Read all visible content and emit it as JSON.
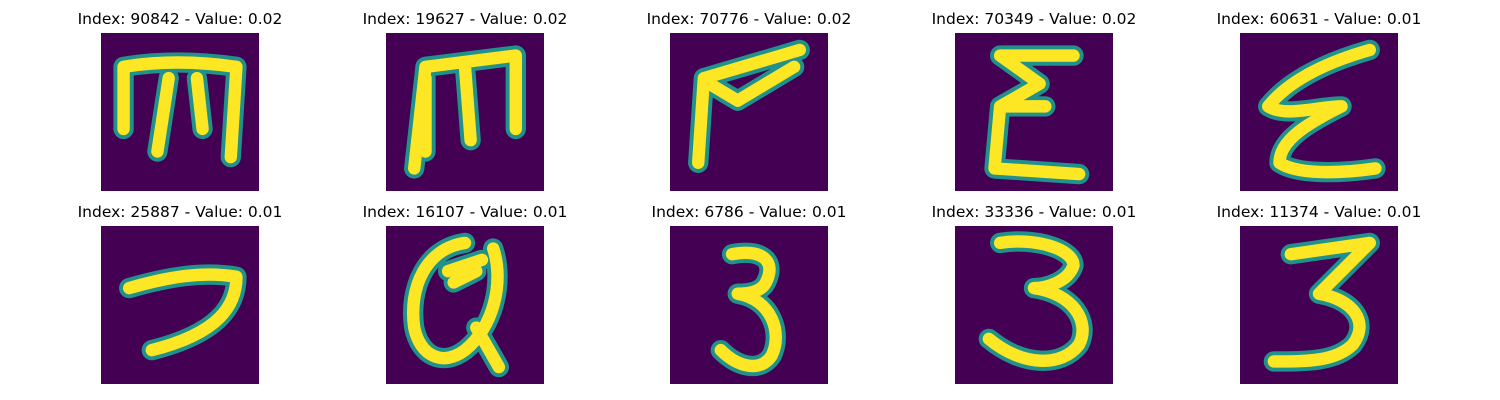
{
  "colors": {
    "background": "#440154",
    "glyph": "#FDE725",
    "edge": "#21918C"
  },
  "panels": [
    {
      "title": "Index: 90842 - Value: 0.02",
      "glyph": "m"
    },
    {
      "title": "Index: 19627 - Value: 0.02",
      "glyph": "m"
    },
    {
      "title": "Index: 70776 - Value: 0.02",
      "glyph": "r"
    },
    {
      "title": "Index: 70349 - Value: 0.02",
      "glyph": "E"
    },
    {
      "title": "Index: 60631 - Value: 0.01",
      "glyph": "e"
    },
    {
      "title": "Index: 25887 - Value: 0.01",
      "glyph": "7"
    },
    {
      "title": "Index: 16107 - Value: 0.01",
      "glyph": "@"
    },
    {
      "title": "Index: 6786 - Value: 0.01",
      "glyph": "3"
    },
    {
      "title": "Index: 33336 - Value: 0.01",
      "glyph": "3"
    },
    {
      "title": "Index: 11374 - Value: 0.01",
      "glyph": "3"
    }
  ]
}
